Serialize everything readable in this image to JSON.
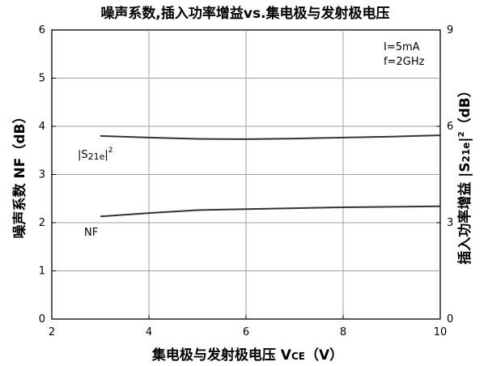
{
  "chart_data": {
    "type": "line",
    "title": "噪声系数,插入功率增益vs.集电极与发射极电压",
    "xlabel": {
      "main": "集电极与发射极电压 V",
      "sub": "CE",
      "unit": "（V）"
    },
    "ylabel_left": "噪声系数 NF（dB）",
    "ylabel_right": {
      "prefix": "插入功率增益 |S",
      "sub": "21e",
      "mid": "|",
      "sup": "2",
      "suffix": "（dB）"
    },
    "xlim": [
      2,
      10
    ],
    "ylim_left": [
      0,
      6
    ],
    "ylim_right": [
      0,
      9
    ],
    "x_ticks": [
      "2",
      "4",
      "6",
      "8",
      "10"
    ],
    "y_left_ticks": [
      "0",
      "1",
      "2",
      "3",
      "4",
      "5",
      "6"
    ],
    "y_right_ticks": [
      "0",
      "3",
      "6",
      "9"
    ],
    "grid": true,
    "conditions": [
      "I=5mA",
      "f=2GHz"
    ],
    "series": [
      {
        "name": "|S21e|2",
        "axis": "right",
        "x": [
          3,
          4,
          5,
          6,
          7,
          8,
          9,
          10
        ],
        "y": [
          5.7,
          5.65,
          5.61,
          5.6,
          5.62,
          5.65,
          5.68,
          5.72
        ]
      },
      {
        "name": "NF",
        "axis": "left",
        "x": [
          3,
          4,
          5,
          6,
          7,
          8,
          9,
          10
        ],
        "y": [
          2.13,
          2.2,
          2.26,
          2.28,
          2.3,
          2.32,
          2.33,
          2.34
        ]
      }
    ],
    "labels": {
      "s21_prefix": "|S",
      "s21_sub": "21e",
      "s21_mid": "|",
      "s21_sup": "2",
      "nf": "NF"
    }
  }
}
